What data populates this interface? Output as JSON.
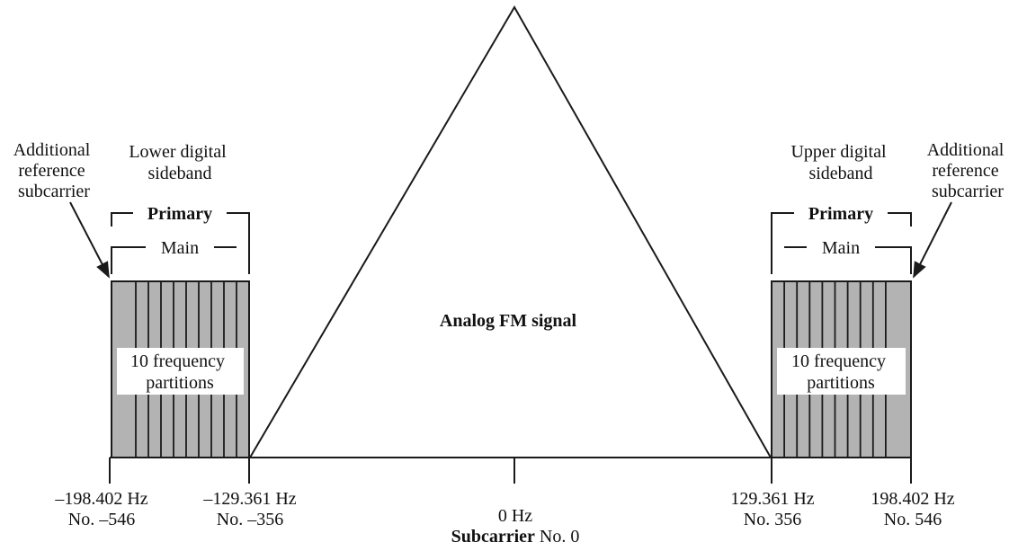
{
  "diagram": {
    "center_label": "Analog FM signal",
    "left_sideband": {
      "outer_label": [
        "Additional",
        "reference",
        "subcarrier"
      ],
      "sideband_label": [
        "Lower digital",
        "sideband"
      ],
      "primary_label": "Primary",
      "main_label": "Main",
      "partitions_label": [
        "10 frequency",
        "partitions"
      ]
    },
    "right_sideband": {
      "outer_label": [
        "Additional",
        "reference",
        "subcarrier"
      ],
      "sideband_label": [
        "Upper digital",
        "sideband"
      ],
      "primary_label": "Primary",
      "main_label": "Main",
      "partitions_label": [
        "10 frequency",
        "partitions"
      ]
    },
    "axis_ticks": [
      {
        "freq": "–198.402 Hz",
        "num": "No. –546"
      },
      {
        "freq": "–129.361 Hz",
        "num": "No. –356"
      },
      {
        "freq": "0 Hz",
        "num_bold": "Subcarrier",
        "num": " No. 0"
      },
      {
        "freq": "129.361 Hz",
        "num": "No. 356"
      },
      {
        "freq": "198.402 Hz",
        "num": "No. 546"
      }
    ],
    "colors": {
      "partition_fill": "#b3b3b3",
      "stroke": "#1a1a1a"
    }
  }
}
